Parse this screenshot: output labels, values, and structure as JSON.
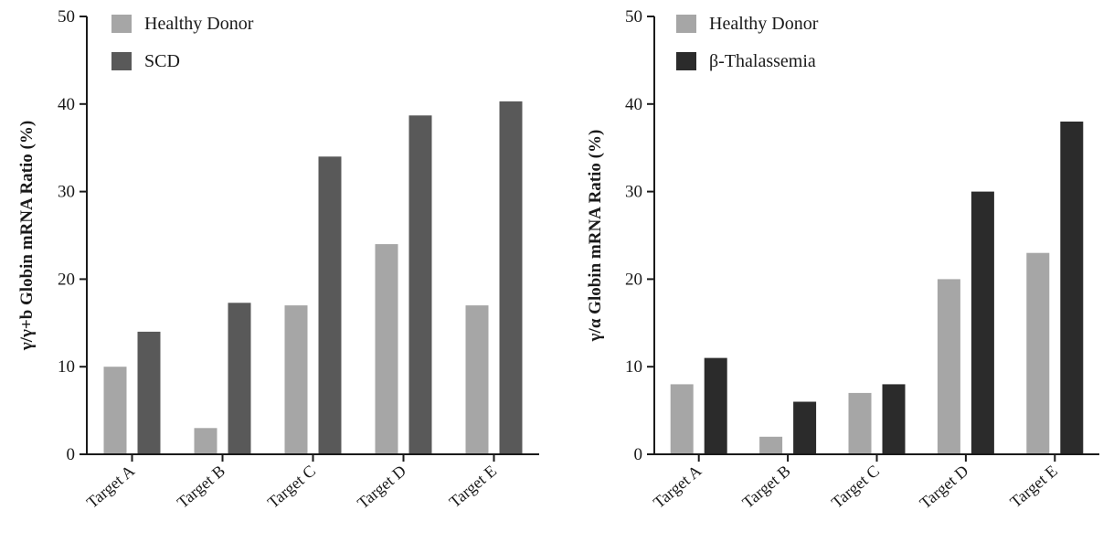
{
  "chart_data": [
    {
      "type": "bar",
      "title": "",
      "xlabel": "",
      "ylabel": "γ/γ+b Globin mRNA Ratio (%)",
      "ylim": [
        0,
        50
      ],
      "yticks": [
        0,
        10,
        20,
        30,
        40,
        50
      ],
      "categories": [
        "Target A",
        "Target B",
        "Target C",
        "Target D",
        "Target E"
      ],
      "series": [
        {
          "name": "Healthy Donor",
          "color": "#a6a6a6",
          "values": [
            10,
            3,
            17,
            24,
            17
          ]
        },
        {
          "name": "SCD",
          "color": "#595959",
          "values": [
            14,
            17.3,
            34,
            38.7,
            40.3
          ]
        }
      ],
      "legend_position": "top-left",
      "grid": false
    },
    {
      "type": "bar",
      "title": "",
      "xlabel": "",
      "ylabel": "γ/α Globin mRNA Ratio (%)",
      "ylim": [
        0,
        50
      ],
      "yticks": [
        0,
        10,
        20,
        30,
        40,
        50
      ],
      "categories": [
        "Target A",
        "Target B",
        "Target C",
        "Target D",
        "Target E"
      ],
      "series": [
        {
          "name": "Healthy Donor",
          "color": "#a6a6a6",
          "values": [
            8,
            2,
            7,
            20,
            23
          ]
        },
        {
          "name": "β-Thalassemia",
          "color": "#2b2b2b",
          "values": [
            11,
            6,
            8,
            30,
            38
          ]
        }
      ],
      "legend_position": "top-left",
      "grid": false
    }
  ]
}
